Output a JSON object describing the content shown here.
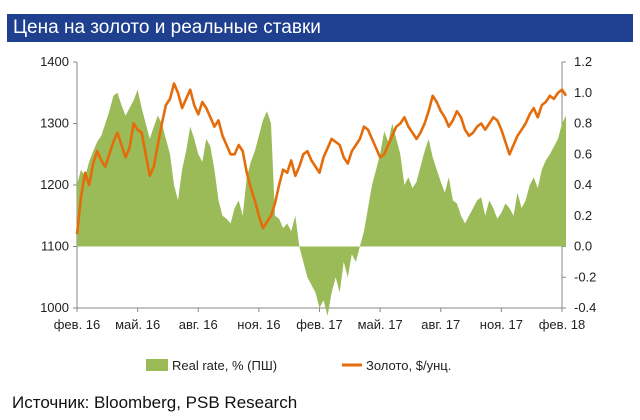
{
  "title": "Цена на золото и реальные ставки",
  "source": "Источник: Bloomberg, PSB Research",
  "colors": {
    "title_bg": "#1f3f8f",
    "area": "#9bbb59",
    "line": "#e46c0a"
  },
  "chart_data": {
    "type": "line+area",
    "title": "Цена на золото и реальные ставки",
    "x_ticks": [
      "фев. 16",
      "май. 16",
      "авг. 16",
      "ноя. 16",
      "фев. 17",
      "май. 17",
      "авг. 17",
      "ноя. 17",
      "фев. 18"
    ],
    "y_left": {
      "ticks": [
        1000,
        1100,
        1200,
        1300,
        1400
      ],
      "range": [
        1000,
        1400
      ]
    },
    "y_right": {
      "ticks": [
        "-0.4",
        "-0.2",
        "0.0",
        "0.2",
        "0.4",
        "0.6",
        "0.8",
        "1.0",
        "1.2"
      ],
      "range": [
        -0.4,
        1.2
      ]
    },
    "series": [
      {
        "name": "Real rate, % (ПШ)",
        "type": "area",
        "axis": "right",
        "x": [
          0,
          0.2,
          0.4,
          0.6,
          0.8,
          1.0,
          1.2,
          1.4,
          1.6,
          1.8,
          2.0,
          2.2,
          2.4,
          2.6,
          2.8,
          3.0,
          3.2,
          3.4,
          3.6,
          3.8,
          4.0,
          4.2,
          4.4,
          4.6,
          4.8,
          5.0,
          5.2,
          5.4,
          5.6,
          5.8,
          6.0,
          6.2,
          6.4,
          6.6,
          6.8,
          7.0,
          7.2,
          7.4,
          7.6,
          7.8,
          8.0,
          8.2,
          8.4,
          8.6,
          8.8,
          9.0,
          9.2,
          9.4,
          9.6,
          9.8,
          10.0,
          10.2,
          10.4,
          10.6,
          10.8,
          11.0,
          11.2,
          11.4,
          11.6,
          11.8,
          12.0,
          12.2,
          12.4,
          12.6,
          12.8,
          13.0,
          13.2,
          13.4,
          13.6,
          13.8,
          14.0,
          14.2,
          14.4,
          14.6,
          14.8,
          15.0,
          15.2,
          15.4,
          15.6,
          15.8,
          16.0,
          16.2,
          16.4,
          16.6,
          16.8,
          17.0,
          17.2,
          17.4,
          17.6,
          17.8,
          18.0,
          18.2,
          18.4,
          18.6,
          18.8,
          19.0,
          19.2,
          19.4,
          19.6,
          19.8,
          20.0,
          20.2,
          20.4,
          20.6,
          20.8,
          21.0,
          21.2,
          21.4,
          21.6,
          21.8,
          22.0,
          22.2,
          22.4,
          22.6,
          22.8,
          23.0,
          23.2,
          23.4,
          23.6,
          23.8,
          24.0,
          24.2
        ],
        "values": [
          0.4,
          0.5,
          0.45,
          0.55,
          0.62,
          0.68,
          0.72,
          0.8,
          0.88,
          0.98,
          1.0,
          0.92,
          0.85,
          0.9,
          0.95,
          1.02,
          0.9,
          0.8,
          0.7,
          0.78,
          0.85,
          0.8,
          0.7,
          0.6,
          0.4,
          0.3,
          0.5,
          0.62,
          0.78,
          0.7,
          0.6,
          0.55,
          0.7,
          0.65,
          0.5,
          0.3,
          0.2,
          0.18,
          0.15,
          0.25,
          0.3,
          0.2,
          0.45,
          0.55,
          0.62,
          0.72,
          0.82,
          0.88,
          0.8,
          0.2,
          0.18,
          0.12,
          0.15,
          0.1,
          0.2,
          0.0,
          -0.1,
          -0.2,
          -0.25,
          -0.3,
          -0.4,
          -0.35,
          -0.45,
          -0.3,
          -0.2,
          -0.3,
          -0.1,
          -0.2,
          -0.05,
          -0.1,
          0.0,
          0.1,
          0.25,
          0.4,
          0.5,
          0.6,
          0.75,
          0.68,
          0.8,
          0.7,
          0.6,
          0.4,
          0.45,
          0.38,
          0.42,
          0.52,
          0.62,
          0.7,
          0.58,
          0.5,
          0.42,
          0.35,
          0.45,
          0.3,
          0.28,
          0.2,
          0.15,
          0.2,
          0.25,
          0.3,
          0.32,
          0.2,
          0.3,
          0.25,
          0.18,
          0.22,
          0.28,
          0.25,
          0.2,
          0.35,
          0.25,
          0.3,
          0.4,
          0.45,
          0.38,
          0.5,
          0.56,
          0.6,
          0.65,
          0.7,
          0.8,
          0.85
        ]
      },
      {
        "name": "Золото,  $/унц.",
        "type": "line",
        "axis": "left",
        "x": [
          0,
          0.2,
          0.4,
          0.6,
          0.8,
          1.0,
          1.2,
          1.4,
          1.6,
          1.8,
          2.0,
          2.2,
          2.4,
          2.6,
          2.8,
          3.0,
          3.2,
          3.4,
          3.6,
          3.8,
          4.0,
          4.2,
          4.4,
          4.6,
          4.8,
          5.0,
          5.2,
          5.4,
          5.6,
          5.8,
          6.0,
          6.2,
          6.4,
          6.6,
          6.8,
          7.0,
          7.2,
          7.4,
          7.6,
          7.8,
          8.0,
          8.2,
          8.4,
          8.6,
          8.8,
          9.0,
          9.2,
          9.4,
          9.6,
          9.8,
          10.0,
          10.2,
          10.4,
          10.6,
          10.8,
          11.0,
          11.2,
          11.4,
          11.6,
          11.8,
          12.0,
          12.2,
          12.4,
          12.6,
          12.8,
          13.0,
          13.2,
          13.4,
          13.6,
          13.8,
          14.0,
          14.2,
          14.4,
          14.6,
          14.8,
          15.0,
          15.2,
          15.4,
          15.6,
          15.8,
          16.0,
          16.2,
          16.4,
          16.6,
          16.8,
          17.0,
          17.2,
          17.4,
          17.6,
          17.8,
          18.0,
          18.2,
          18.4,
          18.6,
          18.8,
          19.0,
          19.2,
          19.4,
          19.6,
          19.8,
          20.0,
          20.2,
          20.4,
          20.6,
          20.8,
          21.0,
          21.2,
          21.4,
          21.6,
          21.8,
          22.0,
          22.2,
          22.4,
          22.6,
          22.8,
          23.0,
          23.2,
          23.4,
          23.6,
          23.8,
          24.0,
          24.2
        ],
        "values": [
          1120,
          1180,
          1220,
          1200,
          1235,
          1255,
          1240,
          1230,
          1250,
          1270,
          1285,
          1265,
          1245,
          1260,
          1300,
          1290,
          1285,
          1250,
          1215,
          1230,
          1265,
          1300,
          1330,
          1340,
          1365,
          1350,
          1325,
          1340,
          1355,
          1330,
          1315,
          1335,
          1325,
          1310,
          1295,
          1305,
          1280,
          1265,
          1250,
          1250,
          1265,
          1255,
          1220,
          1195,
          1175,
          1150,
          1130,
          1140,
          1150,
          1170,
          1200,
          1225,
          1220,
          1240,
          1215,
          1230,
          1250,
          1255,
          1240,
          1230,
          1220,
          1245,
          1260,
          1275,
          1270,
          1265,
          1245,
          1235,
          1255,
          1265,
          1275,
          1295,
          1290,
          1275,
          1260,
          1245,
          1250,
          1265,
          1280,
          1295,
          1300,
          1310,
          1295,
          1285,
          1275,
          1285,
          1300,
          1320,
          1345,
          1335,
          1320,
          1310,
          1295,
          1305,
          1320,
          1310,
          1290,
          1280,
          1285,
          1295,
          1300,
          1290,
          1300,
          1310,
          1305,
          1290,
          1270,
          1250,
          1265,
          1280,
          1290,
          1300,
          1315,
          1325,
          1310,
          1330,
          1335,
          1345,
          1340,
          1350,
          1355,
          1345
        ]
      }
    ],
    "legend": {
      "placement": "bottom"
    }
  }
}
